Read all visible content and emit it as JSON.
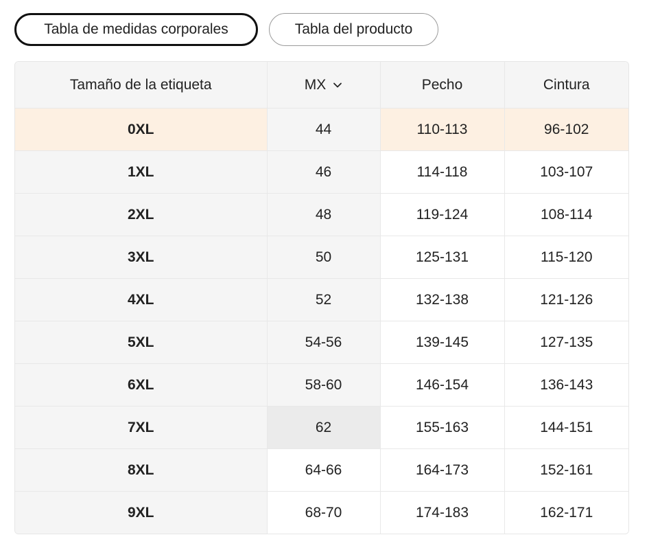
{
  "tabs": {
    "body_label": "Tabla de medidas corporales",
    "product_label": "Tabla del producto"
  },
  "table": {
    "headers": {
      "size": "Tamaño de la etiqueta",
      "region": "MX",
      "chest": "Pecho",
      "waist": "Cintura"
    },
    "rows": [
      {
        "size": "0XL",
        "mx": "44",
        "chest": "110-113",
        "waist": "96-102"
      },
      {
        "size": "1XL",
        "mx": "46",
        "chest": "114-118",
        "waist": "103-107"
      },
      {
        "size": "2XL",
        "mx": "48",
        "chest": "119-124",
        "waist": "108-114"
      },
      {
        "size": "3XL",
        "mx": "50",
        "chest": "125-131",
        "waist": "115-120"
      },
      {
        "size": "4XL",
        "mx": "52",
        "chest": "132-138",
        "waist": "121-126"
      },
      {
        "size": "5XL",
        "mx": "54-56",
        "chest": "139-145",
        "waist": "127-135"
      },
      {
        "size": "6XL",
        "mx": "58-60",
        "chest": "146-154",
        "waist": "136-143"
      },
      {
        "size": "7XL",
        "mx": "62",
        "chest": "155-163",
        "waist": "144-151"
      },
      {
        "size": "8XL",
        "mx": "64-66",
        "chest": "164-173",
        "waist": "152-161"
      },
      {
        "size": "9XL",
        "mx": "68-70",
        "chest": "174-183",
        "waist": "162-171"
      }
    ]
  },
  "colors": {
    "highlight_row": "#fdf0e2",
    "header_bg": "#f5f5f5",
    "border": "#e8e8e8"
  },
  "icons": {
    "region_dropdown": "chevron-down-icon"
  }
}
